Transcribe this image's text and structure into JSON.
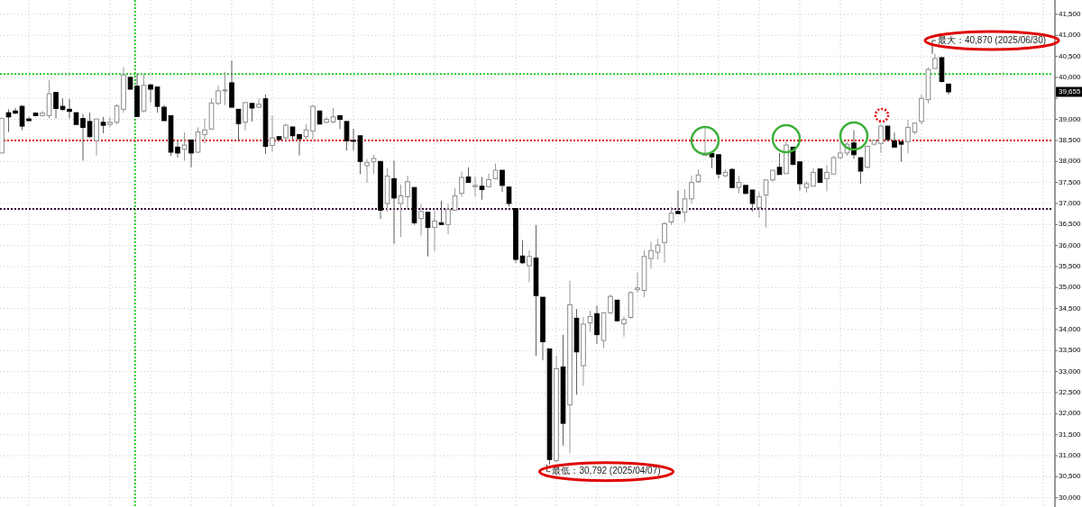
{
  "chart_data": {
    "type": "candlestick",
    "categories": [
      null,
      null,
      null,
      null,
      null,
      null,
      null,
      null,
      null,
      null,
      null,
      null,
      null,
      null,
      null,
      null,
      null,
      null,
      null,
      null,
      null,
      null,
      null,
      null,
      null,
      null,
      null,
      null,
      null,
      null,
      null,
      null,
      null,
      null,
      null,
      null,
      null,
      null,
      null,
      null,
      null,
      null,
      null,
      null,
      null,
      null,
      null,
      null,
      null,
      null,
      null,
      null,
      null,
      null,
      null,
      null,
      null,
      null,
      null,
      null,
      null,
      null,
      null,
      null,
      null,
      null,
      null,
      null,
      null,
      null,
      null,
      null,
      null,
      null,
      null,
      null,
      null,
      null,
      null,
      null,
      null,
      null,
      null,
      null,
      null,
      null,
      null,
      null,
      null,
      null,
      null,
      null,
      null,
      null,
      null,
      null,
      null,
      null,
      null,
      null,
      null,
      null,
      null,
      null,
      null,
      null,
      null,
      null,
      null,
      null,
      null,
      null,
      null,
      null,
      null,
      null,
      null,
      null,
      null,
      null,
      null,
      null,
      null,
      null,
      null,
      null,
      null,
      null,
      null,
      null,
      null,
      null,
      null,
      null,
      null,
      null,
      null,
      null,
      null,
      null,
      null,
      null,
      null,
      null,
      null,
      null,
      null,
      null,
      null,
      null,
      null,
      null,
      null,
      null,
      null,
      null
    ],
    "ohlc": [
      [
        38200,
        39040,
        38200,
        39020
      ],
      [
        39160,
        39240,
        38700,
        39060
      ],
      [
        39200,
        39270,
        39120,
        39150
      ],
      [
        39310,
        39340,
        38740,
        38840
      ],
      [
        39010,
        39060,
        38950,
        38970
      ],
      [
        39150,
        39160,
        39080,
        39090
      ],
      [
        39090,
        39200,
        39070,
        39150
      ],
      [
        39090,
        39930,
        39020,
        39610
      ],
      [
        39640,
        39640,
        39020,
        39260
      ],
      [
        39310,
        39500,
        39200,
        39240
      ],
      [
        39240,
        39490,
        39020,
        39190
      ],
      [
        39160,
        39160,
        38860,
        38880
      ],
      [
        39020,
        39130,
        38020,
        38810
      ],
      [
        38950,
        39160,
        38560,
        38590
      ],
      [
        38490,
        39010,
        38140,
        39010
      ],
      [
        38930,
        39060,
        38670,
        38860
      ],
      [
        38880,
        39060,
        38810,
        38930
      ],
      [
        38930,
        39360,
        38880,
        39320
      ],
      [
        39240,
        40240,
        39160,
        40060
      ],
      [
        40000,
        40000,
        39700,
        39720
      ],
      [
        39790,
        40090,
        39060,
        39070
      ],
      [
        39200,
        40090,
        39160,
        39810
      ],
      [
        39820,
        39840,
        39410,
        39720
      ],
      [
        39770,
        39770,
        39160,
        39310
      ],
      [
        39290,
        39340,
        38970,
        38970
      ],
      [
        39090,
        39090,
        38130,
        38220
      ],
      [
        38340,
        38490,
        38090,
        38200
      ],
      [
        38290,
        38690,
        38020,
        38390
      ],
      [
        38510,
        38520,
        37860,
        38200
      ],
      [
        38220,
        38810,
        38200,
        38700
      ],
      [
        38640,
        39020,
        38430,
        38750
      ],
      [
        38770,
        39500,
        38760,
        39390
      ],
      [
        39380,
        39810,
        39340,
        39680
      ],
      [
        39680,
        40130,
        39340,
        39700
      ],
      [
        39870,
        40400,
        39290,
        39290
      ],
      [
        39240,
        39240,
        38500,
        38900
      ],
      [
        38930,
        39400,
        38740,
        39400
      ],
      [
        39380,
        39390,
        38950,
        39270
      ],
      [
        39290,
        39500,
        39270,
        39360
      ],
      [
        39490,
        39590,
        38180,
        38360
      ],
      [
        38380,
        39090,
        38240,
        38560
      ],
      [
        38590,
        38590,
        38490,
        38520
      ],
      [
        38560,
        38910,
        38450,
        38860
      ],
      [
        38820,
        38820,
        38520,
        38610
      ],
      [
        38640,
        38640,
        38140,
        38540
      ],
      [
        38590,
        38880,
        38520,
        38750
      ],
      [
        38720,
        39340,
        38520,
        39310
      ],
      [
        39200,
        39200,
        38880,
        38890
      ],
      [
        38930,
        39060,
        38910,
        39000
      ],
      [
        38940,
        39270,
        38910,
        39060
      ],
      [
        39090,
        39090,
        38770,
        39000
      ],
      [
        38950,
        38950,
        38260,
        38490
      ],
      [
        38500,
        38780,
        38260,
        38480
      ],
      [
        38610,
        38610,
        37700,
        38000
      ],
      [
        37900,
        38060,
        37490,
        37970
      ],
      [
        37990,
        38160,
        37700,
        38070
      ],
      [
        38000,
        38000,
        36630,
        36840
      ],
      [
        37000,
        37840,
        36810,
        37650
      ],
      [
        37590,
        38020,
        36040,
        37130
      ],
      [
        37000,
        37450,
        36200,
        37180
      ],
      [
        37160,
        37660,
        36880,
        37520
      ],
      [
        37380,
        37380,
        36490,
        36540
      ],
      [
        36640,
        36990,
        36240,
        36810
      ],
      [
        36790,
        36790,
        35740,
        36430
      ],
      [
        36430,
        36840,
        35860,
        36580
      ],
      [
        36540,
        37060,
        36490,
        36500
      ],
      [
        36500,
        36990,
        36270,
        36860
      ],
      [
        36840,
        37360,
        36840,
        37180
      ],
      [
        37240,
        37760,
        37160,
        37620
      ],
      [
        37630,
        37860,
        37490,
        37500
      ],
      [
        37400,
        37630,
        37160,
        37430
      ],
      [
        37410,
        37630,
        37090,
        37330
      ],
      [
        37400,
        37710,
        37380,
        37570
      ],
      [
        37590,
        37950,
        37570,
        37790
      ],
      [
        37790,
        37790,
        37270,
        37430
      ],
      [
        37390,
        37390,
        36930,
        37000
      ],
      [
        36880,
        36880,
        35590,
        35670
      ],
      [
        35750,
        36130,
        35560,
        35590
      ],
      [
        35520,
        35880,
        35130,
        35740
      ],
      [
        35700,
        36490,
        33380,
        34810
      ],
      [
        34770,
        34770,
        33270,
        33710
      ],
      [
        33540,
        33540,
        30792,
        30910
      ],
      [
        30880,
        33380,
        30840,
        33070
      ],
      [
        33110,
        33880,
        31240,
        31770
      ],
      [
        32210,
        35160,
        31060,
        34590
      ],
      [
        34270,
        34490,
        32450,
        33470
      ],
      [
        33140,
        34310,
        32660,
        34130
      ],
      [
        34160,
        34450,
        33950,
        34310
      ],
      [
        34380,
        34570,
        33660,
        33880
      ],
      [
        33740,
        34410,
        33560,
        34400
      ],
      [
        34400,
        34840,
        34360,
        34790
      ],
      [
        34700,
        34700,
        34200,
        34210
      ],
      [
        34140,
        34310,
        33830,
        34240
      ],
      [
        34290,
        34910,
        34260,
        34880
      ],
      [
        34950,
        35360,
        34880,
        34990
      ],
      [
        34930,
        35880,
        34770,
        35740
      ],
      [
        35690,
        36090,
        35450,
        35880
      ],
      [
        35840,
        36160,
        35670,
        36010
      ],
      [
        36070,
        36560,
        35590,
        36520
      ],
      [
        36560,
        36910,
        36490,
        36770
      ],
      [
        36810,
        37310,
        36760,
        36760
      ],
      [
        36790,
        37340,
        36560,
        37110
      ],
      [
        37110,
        37660,
        37000,
        37500
      ],
      [
        37520,
        37810,
        37490,
        37680
      ],
      [
        38140,
        38840,
        38140,
        38190
      ],
      [
        38190,
        38190,
        37840,
        38110
      ],
      [
        38160,
        38160,
        37590,
        37700
      ],
      [
        37660,
        37810,
        37630,
        37740
      ],
      [
        37810,
        37840,
        37360,
        37380
      ],
      [
        37380,
        37660,
        37240,
        37500
      ],
      [
        37430,
        37430,
        37210,
        37240
      ],
      [
        37320,
        37320,
        36810,
        37000
      ],
      [
        36900,
        37270,
        36660,
        37160
      ],
      [
        37200,
        37560,
        36430,
        37560
      ],
      [
        37560,
        37810,
        37520,
        37790
      ],
      [
        37860,
        38200,
        37690,
        37690
      ],
      [
        37710,
        38490,
        37710,
        38390
      ],
      [
        38340,
        38340,
        37910,
        37930
      ],
      [
        37990,
        37990,
        37310,
        37470
      ],
      [
        37380,
        37540,
        37260,
        37470
      ],
      [
        37410,
        37840,
        37400,
        37740
      ],
      [
        37820,
        37820,
        37490,
        37500
      ],
      [
        37590,
        37920,
        37290,
        37740
      ],
      [
        37700,
        38130,
        37700,
        38090
      ],
      [
        38090,
        38490,
        38060,
        38200
      ],
      [
        38200,
        38450,
        38130,
        38410
      ],
      [
        38440,
        38740,
        38060,
        38160
      ],
      [
        38090,
        38090,
        37470,
        37770
      ],
      [
        37860,
        38360,
        37840,
        38360
      ],
      [
        38410,
        38520,
        38380,
        38500
      ],
      [
        38430,
        38880,
        38200,
        38840
      ],
      [
        38840,
        38840,
        38470,
        38520
      ],
      [
        38490,
        38690,
        38330,
        38340
      ],
      [
        38470,
        38470,
        37990,
        38410
      ],
      [
        38470,
        38990,
        38190,
        38810
      ],
      [
        38700,
        38930,
        38640,
        38910
      ],
      [
        38950,
        39590,
        38880,
        39500
      ],
      [
        39470,
        40240,
        39380,
        40190
      ],
      [
        40210,
        40560,
        40200,
        40450
      ],
      [
        40470,
        40470,
        39880,
        39900
      ],
      [
        39840,
        39840,
        39590,
        39655
      ],
      null,
      null,
      null,
      null,
      null,
      null,
      null,
      null,
      null,
      null,
      null,
      null,
      null,
      null,
      null
    ],
    "ylim": [
      29780,
      41840
    ],
    "yticks": [
      {
        "value": 30000,
        "label": "30,000"
      },
      {
        "value": 30500,
        "label": "30,500"
      },
      {
        "value": 31000,
        "label": "31,000"
      },
      {
        "value": 31500,
        "label": "31,500"
      },
      {
        "value": 32000,
        "label": "32,000"
      },
      {
        "value": 32500,
        "label": "32,500"
      },
      {
        "value": 33000,
        "label": "33,000"
      },
      {
        "value": 33500,
        "label": "33,500"
      },
      {
        "value": 34000,
        "label": "34,000"
      },
      {
        "value": 34500,
        "label": "34,500"
      },
      {
        "value": 35000,
        "label": "35,000"
      },
      {
        "value": 35500,
        "label": "35,500"
      },
      {
        "value": 36000,
        "label": "36,000"
      },
      {
        "value": 36500,
        "label": "36,500"
      },
      {
        "value": 37000,
        "label": "37,000"
      },
      {
        "value": 37500,
        "label": "37,500"
      },
      {
        "value": 38000,
        "label": "38,000"
      },
      {
        "value": 38500,
        "label": "38,500"
      },
      {
        "value": 39000,
        "label": "39,000"
      },
      {
        "value": 39500,
        "label": null
      },
      {
        "value": 40000,
        "label": "40,000"
      },
      {
        "value": 40500,
        "label": "40,500"
      },
      {
        "value": 41000,
        "label": "41,000"
      },
      {
        "value": 41500,
        "label": "41,500"
      }
    ],
    "grid": true,
    "ref_lines": [
      {
        "axis": "y",
        "value": 40080,
        "color": "#22cc22",
        "line_style": "dotted"
      },
      {
        "axis": "y",
        "value": 38500,
        "color": "#e00000",
        "line_style": "dotted"
      },
      {
        "axis": "y",
        "value": 36870,
        "color": "#330033",
        "line_style": "dotted"
      }
    ],
    "annotations": [
      "最大：40,870 (2025/06/30)",
      "最低：30,792 (2025/04/07)",
      "39,655"
    ]
  }
}
